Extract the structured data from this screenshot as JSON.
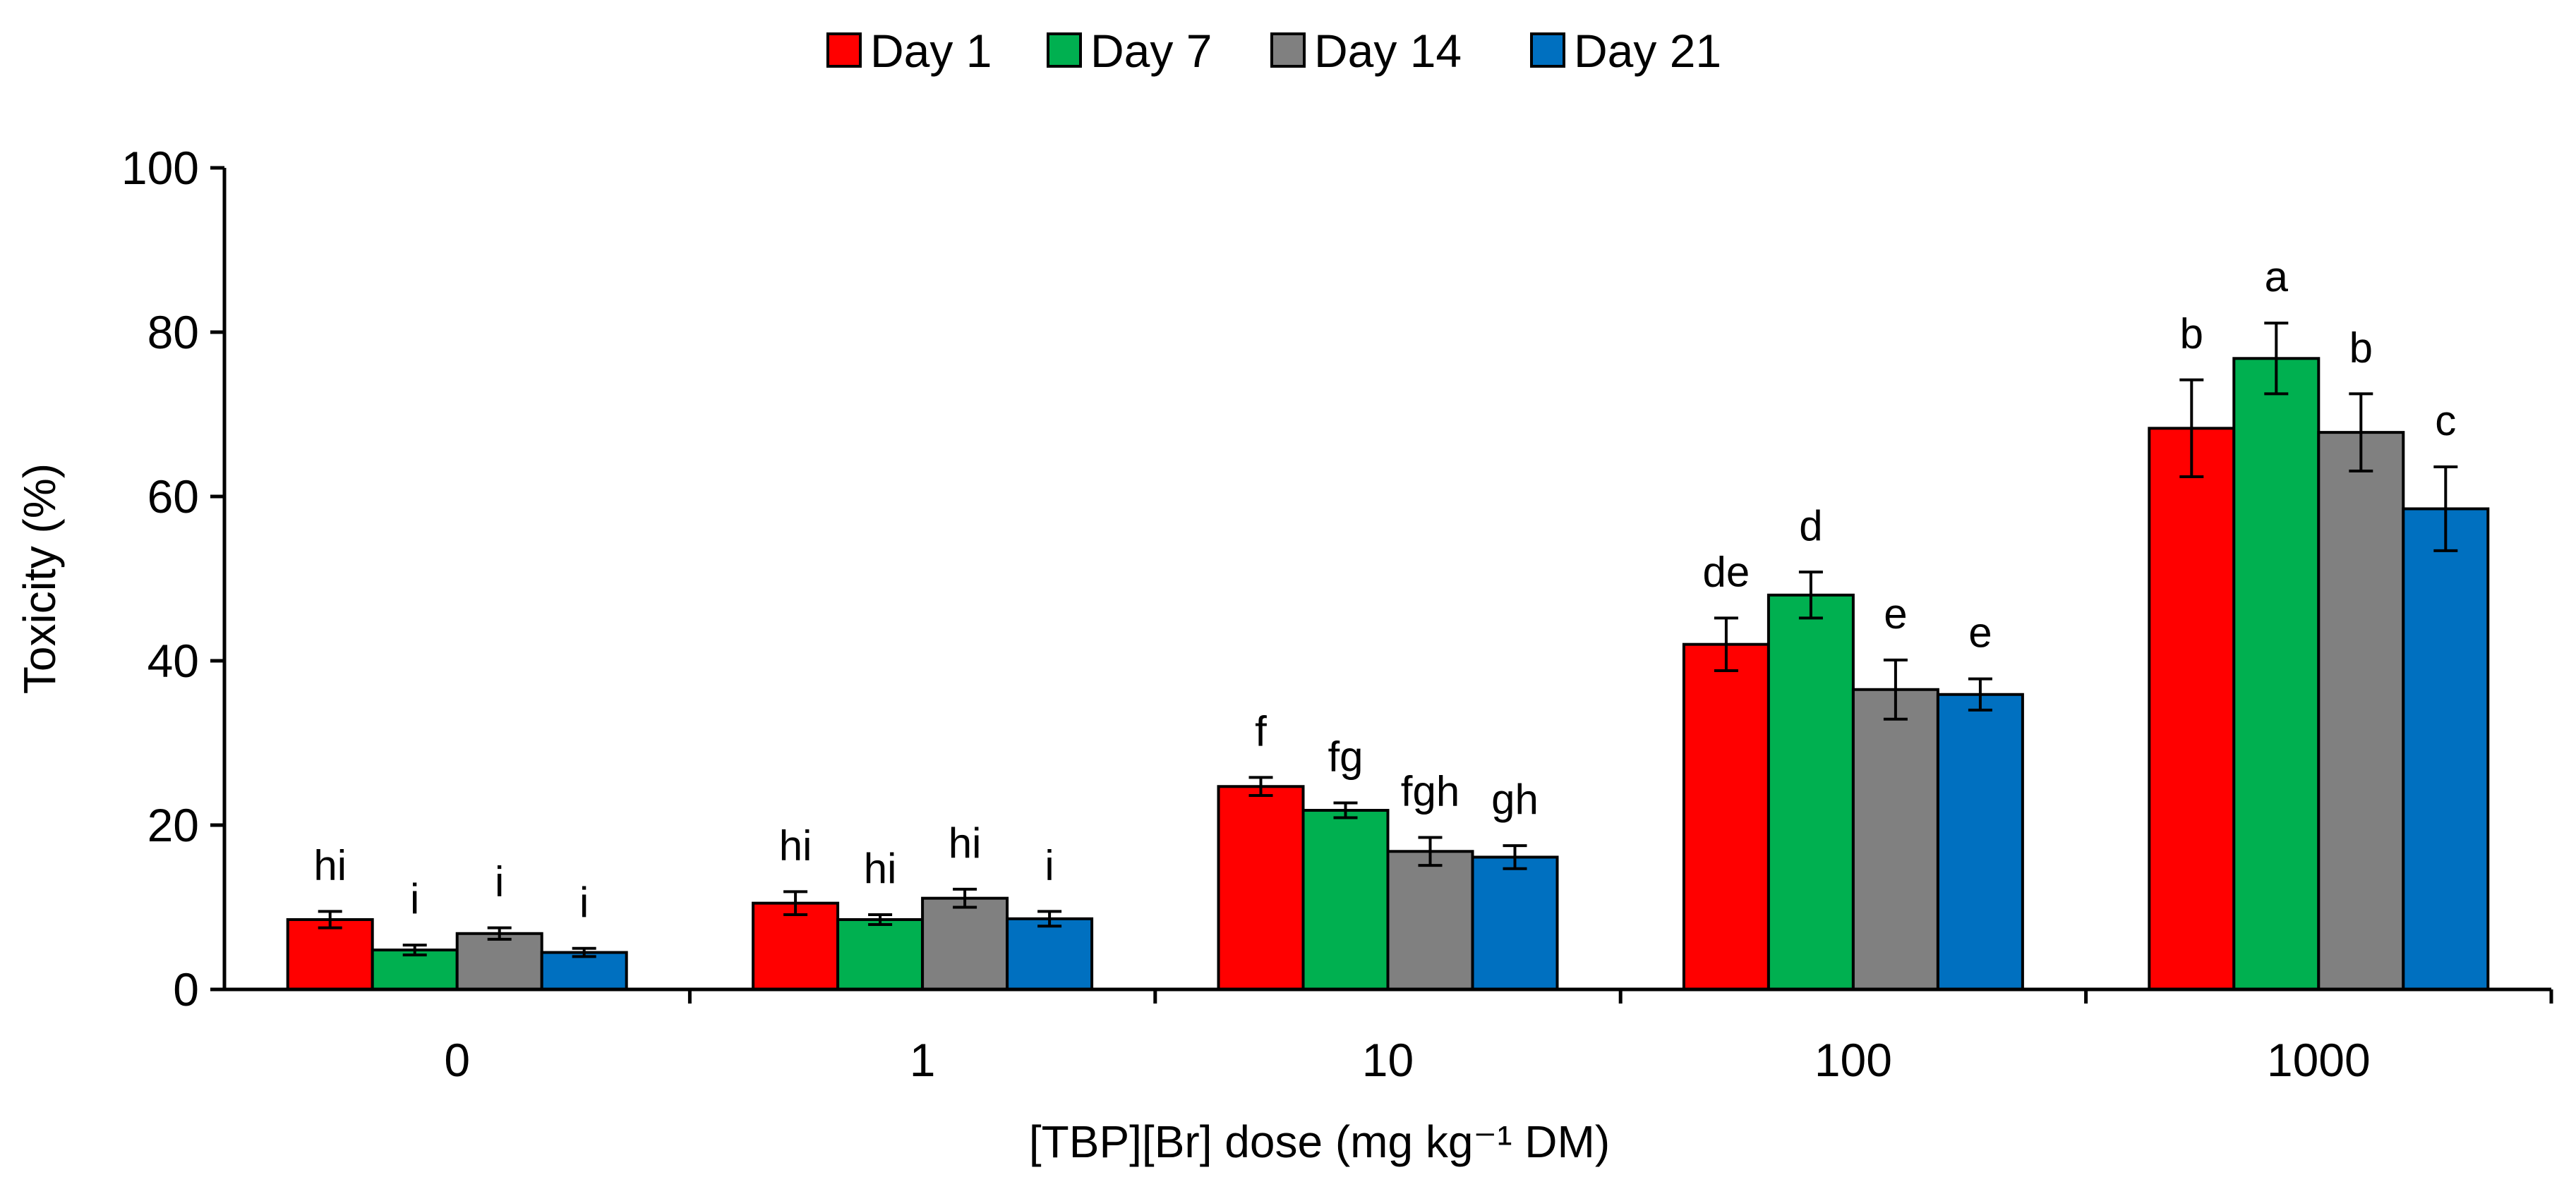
{
  "chart_data": {
    "type": "bar",
    "title": "",
    "xlabel": "[TBP][Br] dose (mg kg⁻¹ DM)",
    "ylabel": "Toxicity (%)",
    "ylim": [
      0,
      100
    ],
    "yticks": [
      0,
      20,
      40,
      60,
      80,
      100
    ],
    "grid": false,
    "legend_position": "top-center",
    "categories": [
      "0",
      "1",
      "10",
      "100",
      "1000"
    ],
    "series": [
      {
        "name": "Day 1",
        "color": "#ff0000",
        "values": [
          8.5,
          10.5,
          24.7,
          42.0,
          68.3
        ],
        "errors": [
          1.0,
          1.4,
          1.1,
          3.2,
          5.9
        ],
        "labels": [
          "hi",
          "hi",
          "f",
          "de",
          "b"
        ]
      },
      {
        "name": "Day 7",
        "color": "#00b050",
        "values": [
          4.8,
          8.5,
          21.8,
          48.0,
          76.8
        ],
        "errors": [
          0.6,
          0.6,
          0.9,
          2.8,
          4.3
        ],
        "labels": [
          "i",
          "hi",
          "fg",
          "d",
          "a"
        ]
      },
      {
        "name": "Day 14",
        "color": "#808080",
        "values": [
          6.8,
          11.1,
          16.8,
          36.5,
          67.8
        ],
        "errors": [
          0.7,
          1.1,
          1.7,
          3.6,
          4.7
        ],
        "labels": [
          "i",
          "hi",
          "fgh",
          "e",
          "b"
        ]
      },
      {
        "name": "Day 21",
        "color": "#0070c0",
        "values": [
          4.5,
          8.6,
          16.1,
          35.9,
          58.5
        ],
        "errors": [
          0.5,
          0.9,
          1.4,
          1.9,
          5.1
        ],
        "labels": [
          "i",
          "i",
          "gh",
          "e",
          "c"
        ]
      }
    ]
  }
}
